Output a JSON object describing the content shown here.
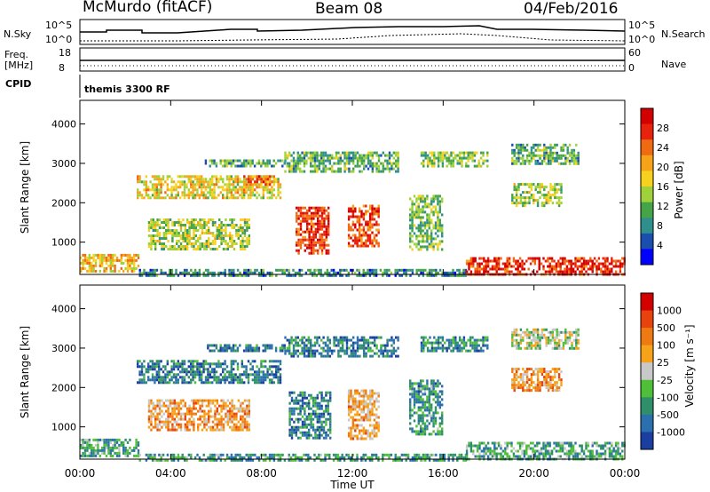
{
  "header": {
    "station": "McMurdo (fitACF)",
    "beam": "Beam 08",
    "date": "04/Feb/2016"
  },
  "top_panels": {
    "nsky_label": "N.Sky",
    "nsky_ticks": [
      "10^5",
      "10^0"
    ],
    "nsearch_label": "N.Search",
    "nsearch_ticks": [
      "10^5",
      "10^0"
    ],
    "freq_label_1": "Freq.",
    "freq_label_2": "[MHz]",
    "freq_ticks": [
      "18",
      "8"
    ],
    "nave_label": "Nave",
    "nave_ticks": [
      "60",
      "0"
    ],
    "cpid_label": "CPID",
    "cpid_value": "themis 3300 RF"
  },
  "chart_data": [
    {
      "type": "heatmap",
      "name": "power",
      "ylabel": "Slant Range [km]",
      "ylim": [
        180,
        4600
      ],
      "yticks": [
        "1000",
        "2000",
        "3000",
        "4000"
      ],
      "colorbar_label": "Power [dB]",
      "colorbar_ticks": [
        "4",
        "8",
        "12",
        "16",
        "20",
        "24",
        "28"
      ],
      "colors": [
        "#0000ff",
        "#1a4fb0",
        "#2f8f8a",
        "#44a447",
        "#9fd23a",
        "#f6d21f",
        "#f7a31a",
        "#f06a12",
        "#e8220d",
        "#d40000"
      ],
      "regions": [
        {
          "t": [
            0.0,
            2.6
          ],
          "r": [
            280,
            700
          ],
          "level": 0.6
        },
        {
          "t": [
            2.6,
            17.0
          ],
          "r": [
            180,
            320
          ],
          "level": 0.25
        },
        {
          "t": [
            17.0,
            24.0
          ],
          "r": [
            180,
            620
          ],
          "level": 0.85
        },
        {
          "t": [
            2.5,
            8.8
          ],
          "r": [
            2150,
            2700
          ],
          "level": 0.55
        },
        {
          "t": [
            7.2,
            8.6
          ],
          "r": [
            2450,
            2700
          ],
          "level": 0.75
        },
        {
          "t": [
            5.5,
            9.0
          ],
          "r": [
            2900,
            3100
          ],
          "level": 0.35
        },
        {
          "t": [
            9.0,
            14.0
          ],
          "r": [
            2800,
            3300
          ],
          "level": 0.35
        },
        {
          "t": [
            9.5,
            11.0
          ],
          "r": [
            700,
            1900
          ],
          "level": 0.85
        },
        {
          "t": [
            11.8,
            13.2
          ],
          "r": [
            900,
            1950
          ],
          "level": 0.8
        },
        {
          "t": [
            3.0,
            7.5
          ],
          "r": [
            800,
            1600
          ],
          "level": 0.45
        },
        {
          "t": [
            14.5,
            16.0
          ],
          "r": [
            800,
            2200
          ],
          "level": 0.4
        },
        {
          "t": [
            15.0,
            18.0
          ],
          "r": [
            2900,
            3300
          ],
          "level": 0.4
        },
        {
          "t": [
            19.0,
            21.2
          ],
          "r": [
            1900,
            2500
          ],
          "level": 0.45
        },
        {
          "t": [
            19.0,
            22.0
          ],
          "r": [
            3000,
            3500
          ],
          "level": 0.35
        }
      ]
    },
    {
      "type": "heatmap",
      "name": "velocity",
      "ylabel": "Slant Range [km]",
      "ylim": [
        180,
        4600
      ],
      "yticks": [
        "1000",
        "2000",
        "3000",
        "4000"
      ],
      "xlabel": "Time UT",
      "xticks": [
        "00:00",
        "04:00",
        "08:00",
        "12:00",
        "16:00",
        "20:00",
        "00:00"
      ],
      "colorbar_label": "Velocity [m s⁻¹]",
      "colorbar_ticks": [
        "1000",
        "500",
        "100",
        "25",
        "-25",
        "-100",
        "-500",
        "-1000"
      ],
      "colors": [
        "#1b3fa0",
        "#2a6fae",
        "#2f8f6a",
        "#4fbf3a",
        "#c8c8c8",
        "#f7a31a",
        "#f07a12",
        "#e8420d",
        "#d40000"
      ],
      "regions": [
        {
          "t": [
            0.0,
            2.6
          ],
          "r": [
            280,
            700
          ],
          "level": 0.3
        },
        {
          "t": [
            2.6,
            17.0
          ],
          "r": [
            180,
            320
          ],
          "level": 0.3
        },
        {
          "t": [
            17.0,
            24.0
          ],
          "r": [
            180,
            620
          ],
          "level": 0.32
        },
        {
          "t": [
            2.5,
            8.8
          ],
          "r": [
            2150,
            2700
          ],
          "level": 0.2
        },
        {
          "t": [
            5.5,
            9.0
          ],
          "r": [
            2900,
            3100
          ],
          "level": 0.2
        },
        {
          "t": [
            9.0,
            14.0
          ],
          "r": [
            2800,
            3300
          ],
          "level": 0.22
        },
        {
          "t": [
            9.2,
            11.0
          ],
          "r": [
            700,
            1900
          ],
          "level": 0.22
        },
        {
          "t": [
            11.8,
            13.2
          ],
          "r": [
            700,
            1950
          ],
          "level": 0.62
        },
        {
          "t": [
            3.0,
            7.5
          ],
          "r": [
            900,
            1700
          ],
          "level": 0.65
        },
        {
          "t": [
            14.5,
            16.0
          ],
          "r": [
            800,
            2200
          ],
          "level": 0.28
        },
        {
          "t": [
            15.0,
            18.0
          ],
          "r": [
            2900,
            3300
          ],
          "level": 0.25
        },
        {
          "t": [
            19.0,
            21.2
          ],
          "r": [
            1900,
            2500
          ],
          "level": 0.66
        },
        {
          "t": [
            19.0,
            22.0
          ],
          "r": [
            3000,
            3500
          ],
          "level": 0.45
        }
      ]
    }
  ]
}
